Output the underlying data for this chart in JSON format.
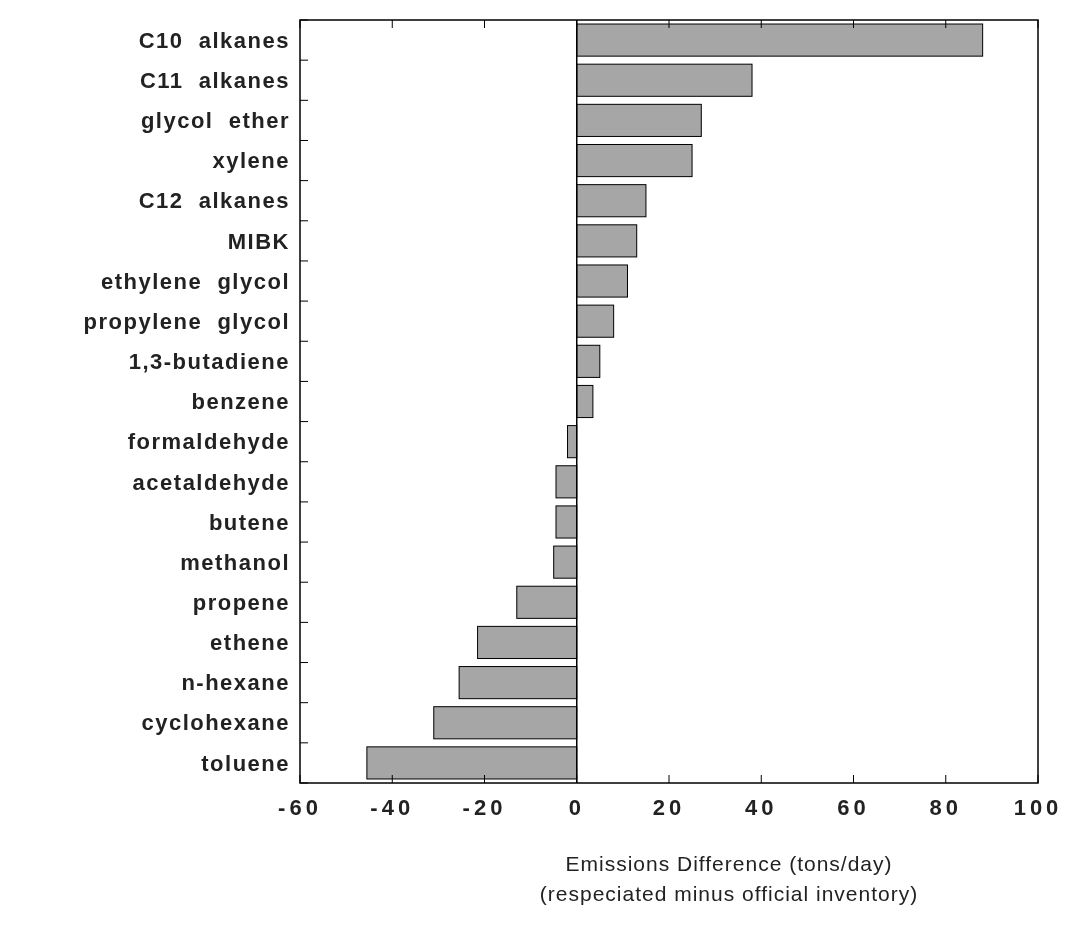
{
  "chart_data": {
    "type": "bar",
    "orientation": "horizontal",
    "categories": [
      "C10  alkanes",
      "C11  alkanes",
      "glycol  ether",
      "xylene",
      "C12  alkanes",
      "MIBK",
      "ethylene  glycol",
      "propylene  glycol",
      "1,3-butadiene",
      "benzene",
      "formaldehyde",
      "acetaldehyde",
      "butene",
      "methanol",
      "propene",
      "ethene",
      "n-hexane",
      "cyclohexane",
      "toluene"
    ],
    "values": [
      88,
      38,
      27,
      25,
      15,
      13,
      11,
      8,
      5,
      3.5,
      -2,
      -4.5,
      -4.5,
      -5,
      -13,
      -21.5,
      -25.5,
      -31,
      -45.5
    ],
    "color": "#a6a6a6",
    "xlim": [
      -60,
      100
    ],
    "xticks": [
      -60,
      -40,
      -20,
      0,
      20,
      40,
      60,
      80,
      100
    ],
    "xlabel": "Emissions Difference (tons/day)\n(respeciated minus official inventory)",
    "ref_lines": [
      {
        "axis": "x",
        "value": 0,
        "color": "#000000"
      }
    ]
  }
}
